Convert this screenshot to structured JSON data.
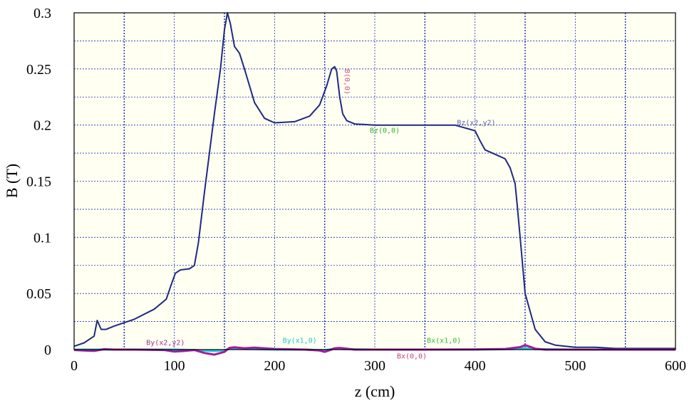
{
  "chart_data": {
    "type": "line",
    "xlabel": "z (cm)",
    "ylabel": "B (T)",
    "xlim": [
      0,
      600
    ],
    "ylim": [
      0,
      0.3
    ],
    "x_ticks": [
      "0",
      "100",
      "200",
      "300",
      "400",
      "500",
      "600"
    ],
    "y_ticks": [
      "0",
      "0.05",
      "0.1",
      "0.15",
      "0.2",
      "0.25",
      "0.3"
    ],
    "grid": true,
    "background": "#fffff2",
    "series": [
      {
        "name": "Bz(x2,y2)",
        "color": "#1f2a80",
        "x": [
          0,
          10,
          20,
          23,
          27,
          32,
          40,
          60,
          80,
          92,
          97,
          101,
          106,
          115,
          120,
          124,
          130,
          140,
          146,
          150,
          153,
          156,
          160,
          165,
          170,
          175,
          180,
          190,
          200,
          220,
          235,
          245,
          252,
          257,
          260,
          262,
          265,
          268,
          272,
          280,
          300,
          340,
          380,
          400,
          405,
          410,
          420,
          430,
          435,
          440,
          442,
          445,
          450,
          460,
          470,
          480,
          500,
          520,
          540,
          560,
          600
        ],
        "values": [
          0.003,
          0.006,
          0.012,
          0.026,
          0.018,
          0.018,
          0.021,
          0.027,
          0.036,
          0.045,
          0.058,
          0.068,
          0.071,
          0.072,
          0.075,
          0.095,
          0.14,
          0.21,
          0.25,
          0.285,
          0.3,
          0.29,
          0.27,
          0.264,
          0.25,
          0.235,
          0.22,
          0.206,
          0.202,
          0.203,
          0.208,
          0.218,
          0.235,
          0.25,
          0.252,
          0.248,
          0.225,
          0.21,
          0.204,
          0.201,
          0.2,
          0.2,
          0.2,
          0.195,
          0.186,
          0.178,
          0.174,
          0.17,
          0.162,
          0.148,
          0.13,
          0.1,
          0.05,
          0.018,
          0.007,
          0.004,
          0.002,
          0.002,
          0.001,
          0.001,
          0.001
        ]
      },
      {
        "name": "By(x1,0)",
        "color": "#1ec8d8",
        "x": [
          0,
          50,
          100,
          120,
          130,
          140,
          150,
          155,
          160,
          170,
          200,
          230,
          250,
          260,
          270,
          300,
          350,
          400,
          440,
          450,
          460,
          500,
          600
        ],
        "values": [
          0.0,
          0.0,
          0.0,
          -0.0004,
          -0.0008,
          -0.0012,
          -0.0006,
          0.0008,
          0.0012,
          0.0006,
          0.0,
          0.0,
          -0.0006,
          0.0008,
          0.0004,
          0.0,
          0.0,
          0.0,
          0.0005,
          0.0012,
          0.0004,
          0.0,
          0.0
        ]
      },
      {
        "name": "By(x2,y2)",
        "color": "#a01ea0",
        "x": [
          0,
          20,
          30,
          40,
          60,
          90,
          100,
          110,
          120,
          130,
          140,
          150,
          155,
          160,
          170,
          180,
          200,
          230,
          245,
          250,
          255,
          260,
          265,
          270,
          280,
          300,
          350,
          400,
          430,
          445,
          450,
          455,
          460,
          470,
          500,
          600
        ],
        "values": [
          -0.0004,
          -0.0012,
          0.0004,
          0.0,
          0.0,
          -0.0004,
          -0.0018,
          -0.0012,
          -0.0004,
          -0.003,
          -0.0045,
          -0.002,
          0.0015,
          0.002,
          0.0012,
          0.0018,
          0.0006,
          0.0,
          -0.0008,
          -0.002,
          -0.0005,
          0.0012,
          0.0015,
          0.001,
          0.0,
          0.0,
          0.0,
          0.0002,
          0.0006,
          0.0022,
          0.004,
          0.0025,
          0.0008,
          0.0,
          0.0,
          0.0
        ]
      }
    ],
    "annotations": [
      {
        "text": "B(0,0)",
        "x": 270,
        "y": 0.25,
        "color": "#d05080",
        "rotate": 90
      },
      {
        "text": "Bz(x2,y2)",
        "x": 382,
        "y": 0.2,
        "color": "#6060b0"
      },
      {
        "text": "Bz(0,0)",
        "x": 295,
        "y": 0.193,
        "color": "#30b030"
      },
      {
        "text": "By(x2,y2)",
        "x": 72,
        "y": 0.004,
        "color": "#a03090"
      },
      {
        "text": "By(x1,0)",
        "x": 208,
        "y": 0.006,
        "color": "#20c8d0"
      },
      {
        "text": "Bx(x1,0)",
        "x": 352,
        "y": 0.006,
        "color": "#30c030"
      },
      {
        "text": "Bx(0,0)",
        "x": 322,
        "y": -0.008,
        "color": "#d04070"
      }
    ]
  }
}
